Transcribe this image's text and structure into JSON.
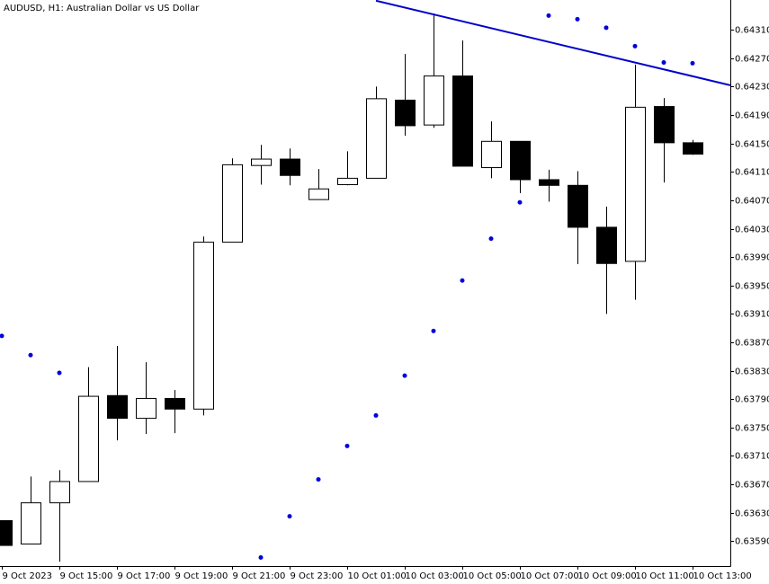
{
  "chart_data": {
    "type": "candlestick",
    "title": "AUDUSD, H1:  Australian Dollar vs US Dollar",
    "categories": [
      "9 Oct 2023",
      null,
      "9 Oct 15:00",
      null,
      "9 Oct 17:00",
      null,
      "9 Oct 19:00",
      null,
      "9 Oct 21:00",
      null,
      "9 Oct 23:00",
      null,
      "10 Oct 01:00",
      null,
      "10 Oct 03:00",
      null,
      "10 Oct 05:00",
      null,
      "10 Oct 07:00",
      null,
      "10 Oct 09:00",
      null,
      "10 Oct 11:00",
      null,
      "10 Oct 13:00"
    ],
    "open": [
      0.63619,
      0.63586,
      0.63644,
      0.63674,
      0.63795,
      0.63763,
      0.63791,
      0.63776,
      0.64011,
      0.64119,
      0.64128,
      0.64071,
      0.64092,
      0.64101,
      0.64211,
      0.64176,
      0.64245,
      0.64116,
      0.64153,
      0.64099,
      0.64091,
      0.64032,
      0.63984,
      0.64202,
      0.64151
    ],
    "high": [
      0.63619,
      0.63681,
      0.6369,
      0.63835,
      0.63865,
      0.63842,
      0.63803,
      0.64019,
      0.64129,
      0.64148,
      0.64143,
      0.64114,
      0.64139,
      0.6423,
      0.64276,
      0.64333,
      0.64295,
      0.64181,
      0.64153,
      0.64113,
      0.64111,
      0.64061,
      0.64261,
      0.64214,
      0.64155
    ],
    "low": [
      0.63584,
      0.63586,
      0.63561,
      0.63674,
      0.63732,
      0.63741,
      0.63742,
      0.63767,
      0.64011,
      0.64092,
      0.64091,
      0.64071,
      0.64091,
      0.64101,
      0.64161,
      0.64172,
      0.64118,
      0.64101,
      0.6408,
      0.64068,
      0.6398,
      0.6391,
      0.6393,
      0.64095,
      0.64134
    ],
    "close": [
      0.63584,
      0.63644,
      0.63674,
      0.63794,
      0.63763,
      0.63791,
      0.63776,
      0.64011,
      0.6412,
      0.64128,
      0.64105,
      0.64086,
      0.64101,
      0.64213,
      0.64175,
      0.64245,
      0.64118,
      0.64153,
      0.64099,
      0.64091,
      0.64032,
      0.63981,
      0.64201,
      0.64151,
      0.64135
    ],
    "up_color": "#ffffff",
    "down_color": "#000000",
    "sar": {
      "color": "#0000dd",
      "values": [
        0.63879,
        0.63852,
        0.63827,
        null,
        null,
        null,
        null,
        null,
        null,
        0.63567,
        0.63625,
        0.63677,
        0.63724,
        0.63767,
        0.63823,
        0.63886,
        0.63957,
        0.64016,
        0.64067,
        0.6433,
        0.64325,
        0.64313,
        0.64287,
        0.64264,
        0.64263
      ]
    },
    "trendline": {
      "color": "#0000cc",
      "x": [
        13,
        22
      ],
      "values": [
        0.64351,
        0.64264
      ]
    },
    "ylim": [
      0.63555,
      0.64352
    ],
    "yticks": [
      {
        "value": 0.6431,
        "label": "0.64310"
      },
      {
        "value": 0.6427,
        "label": "0.64270"
      },
      {
        "value": 0.6423,
        "label": "0.64230"
      },
      {
        "value": 0.6419,
        "label": "0.64190"
      },
      {
        "value": 0.6415,
        "label": "0.64150"
      },
      {
        "value": 0.6411,
        "label": "0.64110"
      },
      {
        "value": 0.6407,
        "label": "0.64070"
      },
      {
        "value": 0.6403,
        "label": "0.64030"
      },
      {
        "value": 0.6399,
        "label": "0.63990"
      },
      {
        "value": 0.6395,
        "label": "0.63950"
      },
      {
        "value": 0.6391,
        "label": "0.63910"
      },
      {
        "value": 0.6387,
        "label": "0.63870"
      },
      {
        "value": 0.6383,
        "label": "0.63830"
      },
      {
        "value": 0.6379,
        "label": "0.63790"
      },
      {
        "value": 0.6375,
        "label": "0.63750"
      },
      {
        "value": 0.6371,
        "label": "0.63710"
      },
      {
        "value": 0.6367,
        "label": "0.63670"
      },
      {
        "value": 0.6363,
        "label": "0.63630"
      },
      {
        "value": 0.6359,
        "label": "0.63590"
      }
    ]
  }
}
